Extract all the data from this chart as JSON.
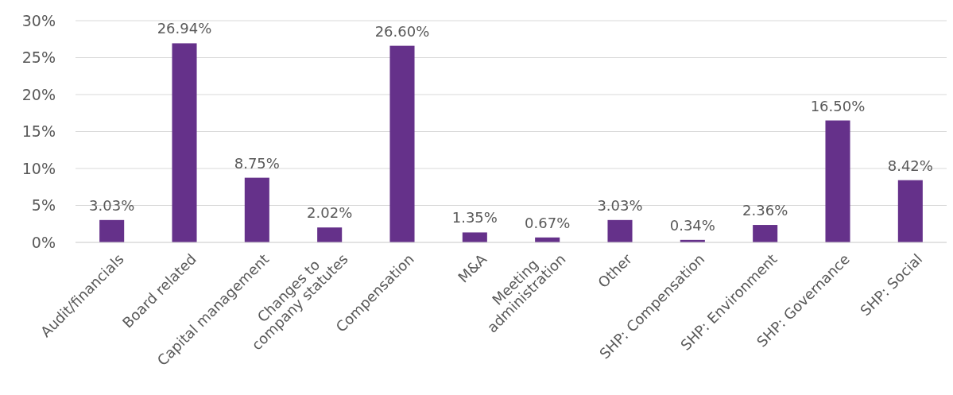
{
  "chart_data": {
    "type": "bar",
    "categories": [
      "Audit/financials",
      "Board related",
      "Capital management",
      "Changes to\ncompany statutes",
      "Compensation",
      "M&A",
      "Meeting\nadministration",
      "Other",
      "SHP: Compensation",
      "SHP: Environment",
      "SHP: Governance",
      "SHP: Social"
    ],
    "values": [
      3.03,
      26.94,
      8.75,
      2.02,
      26.6,
      1.35,
      0.67,
      3.03,
      0.34,
      2.36,
      16.5,
      8.42
    ],
    "value_labels": [
      "3.03%",
      "26.94%",
      "8.75%",
      "2.02%",
      "26.60%",
      "1.35%",
      "0.67%",
      "3.03%",
      "0.34%",
      "2.36%",
      "16.50%",
      "8.42%"
    ],
    "color": "#65318a",
    "ylim": [
      0,
      30
    ],
    "yticks": [
      {
        "value": 0,
        "label": "0%"
      },
      {
        "value": 5,
        "label": "5%"
      },
      {
        "value": 10,
        "label": "10%"
      },
      {
        "value": 15,
        "label": "15%"
      },
      {
        "value": 20,
        "label": "20%"
      },
      {
        "value": 25,
        "label": "25%"
      },
      {
        "value": 30,
        "label": "30%"
      }
    ],
    "grid": "y"
  }
}
